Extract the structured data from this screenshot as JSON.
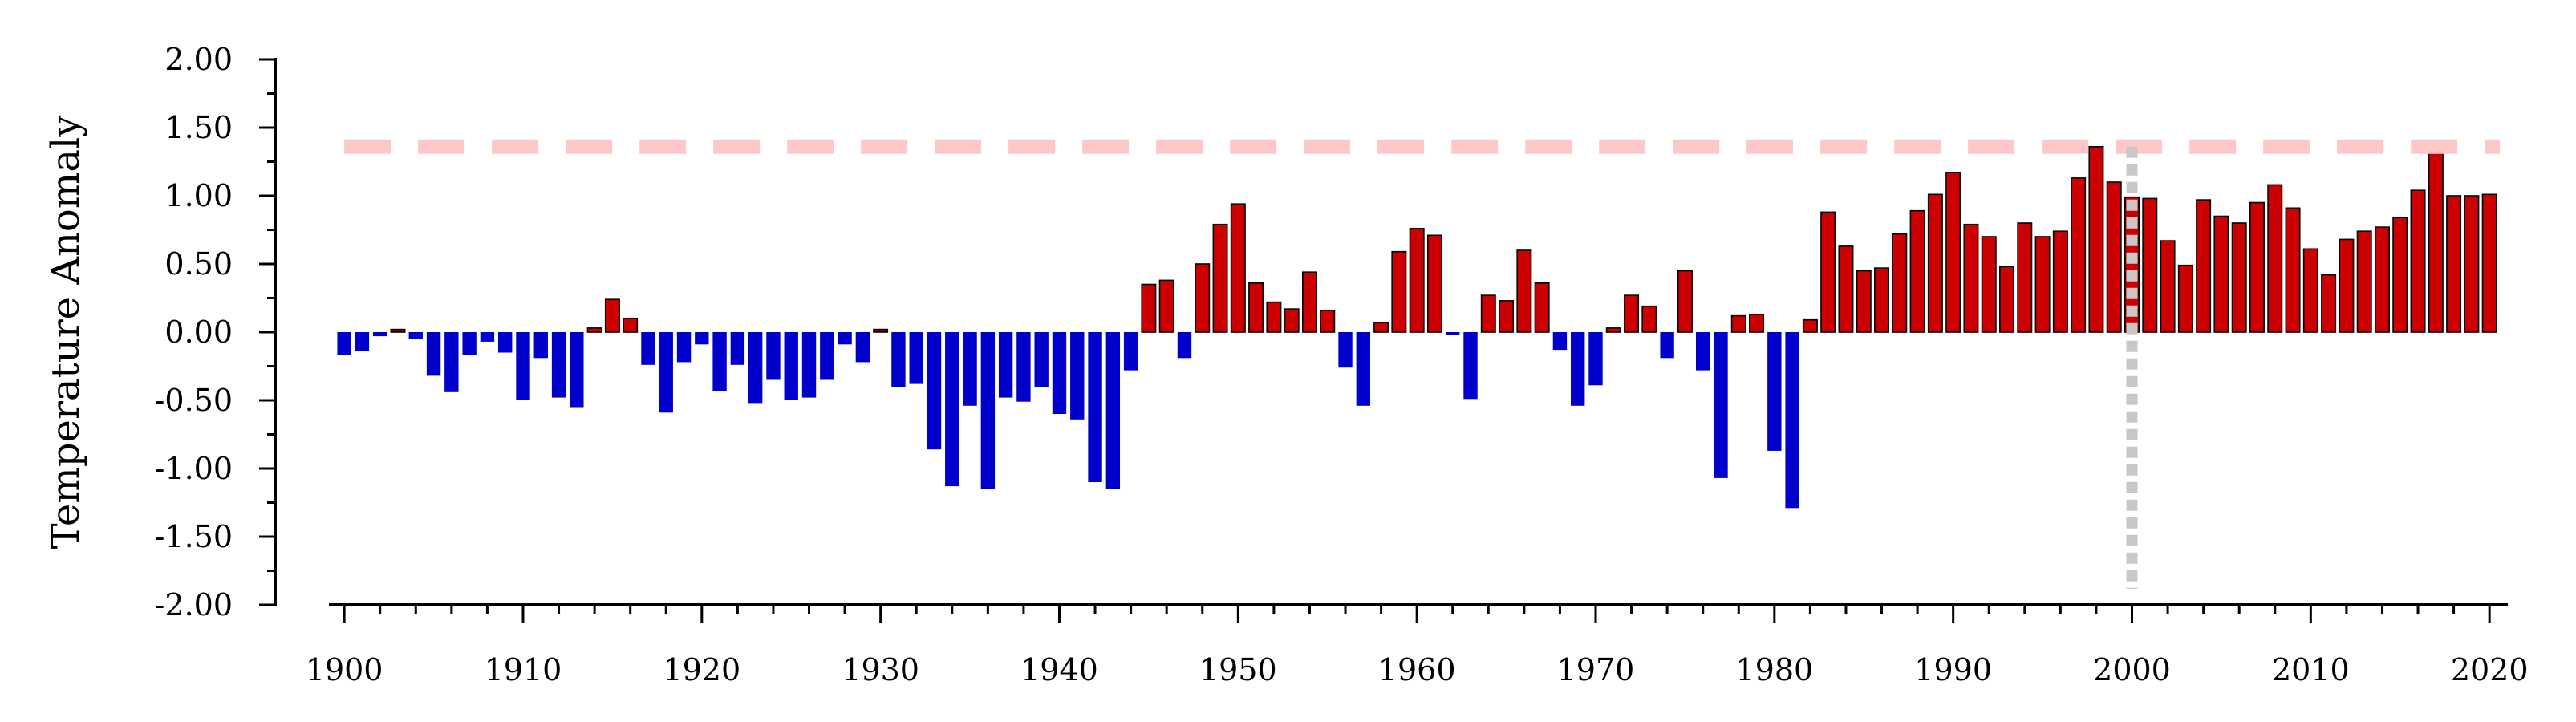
{
  "chart_data": {
    "type": "bar",
    "title": "",
    "xlabel": "",
    "ylabel": "Temperature Anomaly",
    "xlim": [
      1899.5,
      2020.8
    ],
    "ylim": [
      -2.0,
      2.0
    ],
    "x_ticks": [
      "1900",
      "1910",
      "1920",
      "1930",
      "1940",
      "1950",
      "1960",
      "1970",
      "1980",
      "1990",
      "2000",
      "2010",
      "2020"
    ],
    "y_ticks": [
      "2.00",
      "1.50",
      "1.00",
      "0.50",
      "0.00",
      "-0.50",
      "-1.00",
      "-1.50",
      "-2.00"
    ],
    "y_tick_values": [
      2.0,
      1.5,
      1.0,
      0.5,
      0.0,
      -0.5,
      -1.0,
      -1.5,
      -2.0
    ],
    "grid": false,
    "colors": {
      "positive": "#cc0000",
      "negative": "#0000cc",
      "reference_line": "#ffc8c8",
      "marker_line": "#c8c8c8"
    },
    "reference_line_y": 1.36,
    "marker_line_x": 2000,
    "x": [
      1900,
      1901,
      1902,
      1903,
      1904,
      1905,
      1906,
      1907,
      1908,
      1909,
      1910,
      1911,
      1912,
      1913,
      1914,
      1915,
      1916,
      1917,
      1918,
      1919,
      1920,
      1921,
      1922,
      1923,
      1924,
      1925,
      1926,
      1927,
      1928,
      1929,
      1930,
      1931,
      1932,
      1933,
      1934,
      1935,
      1936,
      1937,
      1938,
      1939,
      1940,
      1941,
      1942,
      1943,
      1944,
      1945,
      1946,
      1947,
      1948,
      1949,
      1950,
      1951,
      1952,
      1953,
      1954,
      1955,
      1956,
      1957,
      1958,
      1959,
      1960,
      1961,
      1962,
      1963,
      1964,
      1965,
      1966,
      1967,
      1968,
      1969,
      1970,
      1971,
      1972,
      1973,
      1974,
      1975,
      1976,
      1977,
      1978,
      1979,
      1980,
      1981,
      1982,
      1983,
      1984,
      1985,
      1986,
      1987,
      1988,
      1989,
      1990,
      1991,
      1992,
      1993,
      1994,
      1995,
      1996,
      1997,
      1998,
      1999,
      2000,
      2001,
      2002,
      2003,
      2004,
      2005,
      2006,
      2007,
      2008,
      2009,
      2010,
      2011,
      2012,
      2013,
      2014,
      2015,
      2016,
      2017,
      2018,
      2019,
      2020
    ],
    "values": [
      -0.17,
      -0.14,
      -0.03,
      0.02,
      -0.05,
      -0.32,
      -0.44,
      -0.17,
      -0.07,
      -0.15,
      -0.5,
      -0.19,
      -0.48,
      -0.55,
      0.03,
      0.24,
      0.1,
      -0.24,
      -0.59,
      -0.22,
      -0.09,
      -0.43,
      -0.24,
      -0.52,
      -0.35,
      -0.5,
      -0.48,
      -0.35,
      -0.09,
      -0.22,
      0.02,
      -0.4,
      -0.38,
      -0.86,
      -1.13,
      -0.54,
      -1.15,
      -0.48,
      -0.51,
      -0.4,
      -0.6,
      -0.64,
      -1.1,
      -1.15,
      -0.28,
      0.35,
      0.38,
      -0.19,
      0.5,
      0.79,
      0.94,
      0.36,
      0.22,
      0.17,
      0.44,
      0.16,
      -0.26,
      -0.54,
      0.07,
      0.59,
      0.76,
      0.71,
      -0.02,
      -0.49,
      0.27,
      0.23,
      0.6,
      0.36,
      -0.13,
      -0.54,
      -0.39,
      0.03,
      0.27,
      0.19,
      -0.19,
      0.45,
      -0.28,
      -1.07,
      0.12,
      0.13,
      -0.87,
      -1.29,
      0.09,
      0.88,
      0.63,
      0.45,
      0.47,
      0.72,
      0.89,
      1.01,
      1.17,
      0.79,
      0.7,
      0.48,
      0.8,
      0.7,
      0.74,
      1.13,
      1.36,
      1.1,
      0.99,
      0.98,
      0.67,
      0.49,
      0.97,
      0.85,
      0.8,
      0.95,
      1.08,
      0.91,
      0.61,
      0.42,
      0.68,
      0.74,
      0.77,
      0.84,
      1.04,
      1.34,
      1.0,
      1.0,
      1.01
    ]
  }
}
